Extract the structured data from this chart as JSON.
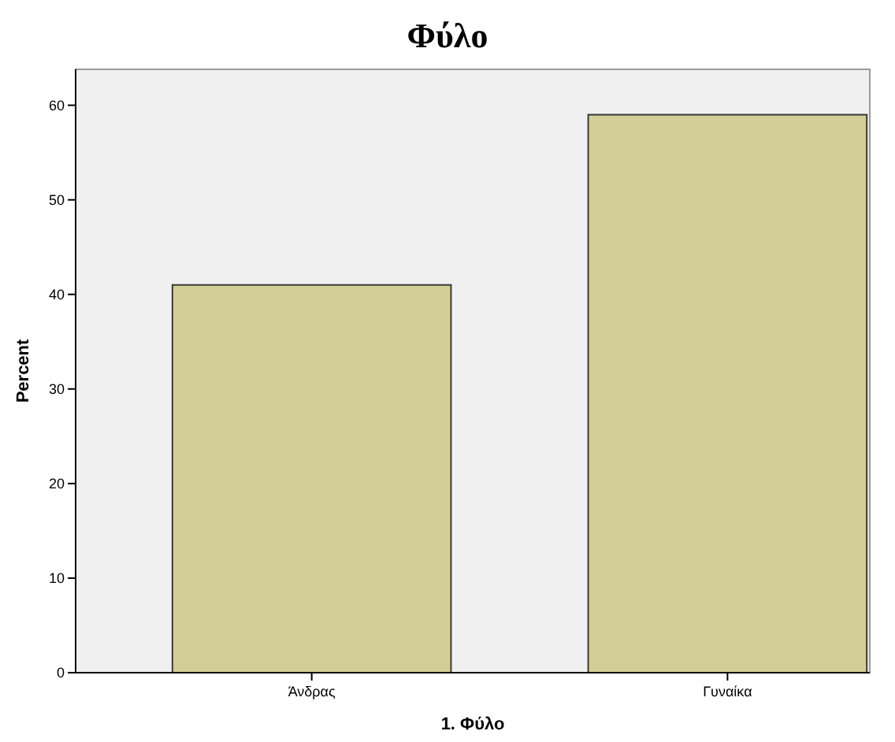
{
  "chart_data": {
    "type": "bar",
    "title": "Φύλο",
    "xlabel": "1. Φύλο",
    "ylabel": "Percent",
    "categories": [
      "Άνδρας",
      "Γυναίκα"
    ],
    "values": [
      41,
      59
    ],
    "color": "#d3ce97",
    "ylim": [
      0,
      63.8
    ],
    "yticks": [
      0,
      10,
      20,
      30,
      40,
      50,
      60
    ],
    "grid": false
  }
}
